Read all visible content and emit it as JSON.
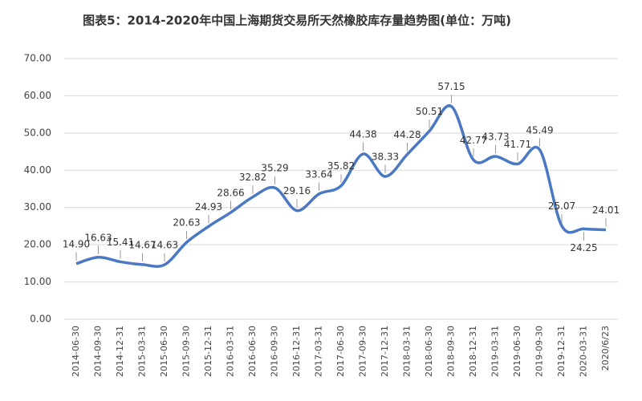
{
  "chart_data": {
    "type": "line",
    "title": "图表5：2014-2020年中国上海期货交易所天然橡胶库存量趋势图(单位：万吨)",
    "categories": [
      "2014-06-30",
      "2014-09-30",
      "2014-12-31",
      "2015-03-31",
      "2015-06-30",
      "2015-09-30",
      "2015-12-31",
      "2016-03-31",
      "2016-06-30",
      "2016-09-30",
      "2016-12-31",
      "2017-03-31",
      "2017-06-30",
      "2017-09-30",
      "2017-12-31",
      "2018-03-31",
      "2018-06-30",
      "2018-09-30",
      "2018-12-31",
      "2019-03-31",
      "2019-06-30",
      "2019-09-30",
      "2019-12-31",
      "2020-03-31",
      "2020/6/23"
    ],
    "values": [
      14.9,
      16.63,
      15.41,
      14.67,
      14.63,
      20.63,
      24.93,
      28.66,
      32.82,
      35.29,
      29.16,
      33.64,
      35.82,
      44.38,
      38.33,
      44.28,
      50.51,
      57.15,
      42.77,
      43.73,
      41.71,
      45.49,
      25.07,
      24.25,
      24.01
    ],
    "value_labels": [
      "14.90",
      "16.63",
      "15.41",
      "14.67",
      "14.63",
      "20.63",
      "24.93",
      "28.66",
      "32.82",
      "35.29",
      "29.16",
      "33.64",
      "35.82",
      "44.38",
      "38.33",
      "44.28",
      "50.51",
      "57.15",
      "42.77",
      "43.73",
      "41.71",
      "45.49",
      "25.07",
      "24.25",
      "24.01"
    ],
    "color": "#4a78c2",
    "ylim": [
      0,
      70
    ],
    "yticks": [
      {
        "value": 0,
        "label": "0.00"
      },
      {
        "value": 10,
        "label": "10.00"
      },
      {
        "value": 20,
        "label": "20.00"
      },
      {
        "value": 30,
        "label": "30.00"
      },
      {
        "value": 40,
        "label": "40.00"
      },
      {
        "value": 50,
        "label": "50.00"
      },
      {
        "value": 60,
        "label": "60.00"
      },
      {
        "value": 70,
        "label": "70.00"
      }
    ],
    "grid": true
  }
}
